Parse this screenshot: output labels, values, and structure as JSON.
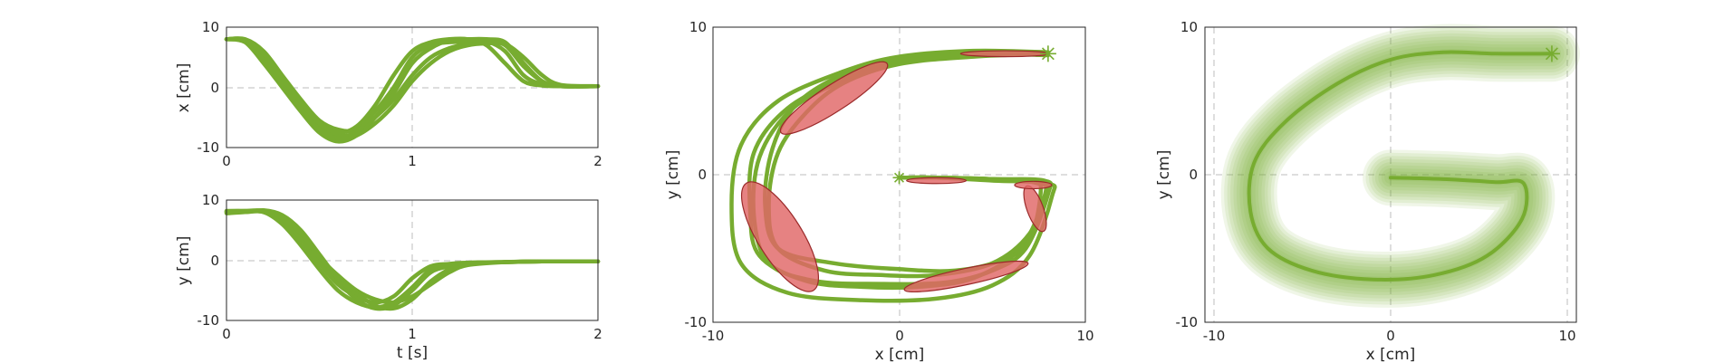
{
  "colors": {
    "trajectory": "#77ac30",
    "ellipse_fill": "#e06666",
    "ellipse_edge": "#9b2a2a",
    "zero_line": "#bdbdbd"
  },
  "chart_data": [
    {
      "type": "line",
      "xlabel": "",
      "ylabel": "x [cm]",
      "xlim": [
        0,
        2
      ],
      "ylim": [
        -10,
        10
      ],
      "xticks": [
        "0",
        "1",
        "2"
      ],
      "yticks": [
        "-10",
        "0",
        "10"
      ],
      "zero_lines": true,
      "series": [
        {
          "x": [
            0,
            0.1,
            0.2,
            0.3,
            0.4,
            0.5,
            0.6,
            0.7,
            0.8,
            0.9,
            1.0,
            1.1,
            1.2,
            1.3,
            1.4,
            1.5,
            1.6,
            1.7,
            1.8,
            2.0
          ],
          "values": [
            8,
            7.5,
            4,
            0,
            -4,
            -7.5,
            -9,
            -8,
            -5,
            -1,
            4,
            6.5,
            7.8,
            8,
            8,
            7.5,
            4,
            1,
            0.2,
            0.2
          ]
        },
        {
          "x": [
            0,
            0.1,
            0.2,
            0.3,
            0.4,
            0.5,
            0.6,
            0.7,
            0.8,
            0.9,
            1.0,
            1.1,
            1.2,
            1.3,
            1.4,
            1.5,
            1.6,
            1.7,
            1.8,
            2.0
          ],
          "values": [
            8,
            7.8,
            5,
            1,
            -3,
            -6.5,
            -8,
            -7.5,
            -5,
            -2,
            2,
            5,
            6.5,
            7.2,
            7.5,
            7,
            3.5,
            1,
            0.2,
            0.2
          ]
        },
        {
          "x": [
            0,
            0.1,
            0.2,
            0.3,
            0.4,
            0.5,
            0.6,
            0.7,
            0.8,
            0.9,
            1.0,
            1.1,
            1.2,
            1.3,
            1.4,
            1.5,
            1.6,
            1.7,
            1.8,
            2.0
          ],
          "values": [
            8,
            8,
            6,
            2,
            -2,
            -5.5,
            -7,
            -7,
            -4,
            0,
            5,
            7,
            7.5,
            7.5,
            7.6,
            6,
            2,
            0.5,
            0.2,
            0.2
          ]
        },
        {
          "x": [
            0,
            0.1,
            0.2,
            0.3,
            0.4,
            0.5,
            0.6,
            0.7,
            0.8,
            0.9,
            1.0,
            1.1,
            1.2,
            1.3,
            1.4,
            1.5,
            1.6,
            1.7,
            1.8,
            2.0
          ],
          "values": [
            8,
            7.6,
            4.5,
            0.5,
            -3.5,
            -7,
            -8.5,
            -8,
            -6,
            -3,
            1,
            4,
            6,
            7,
            7.3,
            7.2,
            5,
            2,
            0.4,
            0.2
          ]
        },
        {
          "x": [
            0,
            0.1,
            0.2,
            0.3,
            0.4,
            0.5,
            0.6,
            0.7,
            0.8,
            0.9,
            1.0,
            1.1,
            1.2,
            1.3,
            1.4,
            1.5,
            1.6,
            1.7,
            1.8,
            2.0
          ],
          "values": [
            8,
            7.9,
            5.5,
            1.5,
            -2.5,
            -6,
            -7.5,
            -6.5,
            -3,
            2,
            6,
            7.5,
            8,
            8,
            7,
            4,
            1,
            0.3,
            0.2,
            0.2
          ]
        }
      ]
    },
    {
      "type": "line",
      "xlabel": "t [s]",
      "ylabel": "y [cm]",
      "xlim": [
        0,
        2
      ],
      "ylim": [
        -10,
        10
      ],
      "xticks": [
        "0",
        "1",
        "2"
      ],
      "yticks": [
        "-10",
        "0",
        "10"
      ],
      "zero_lines": true,
      "series": [
        {
          "x": [
            0,
            0.1,
            0.2,
            0.3,
            0.4,
            0.5,
            0.6,
            0.7,
            0.8,
            0.9,
            1.0,
            1.1,
            1.2,
            1.3,
            1.5,
            1.7,
            2.0
          ],
          "values": [
            8,
            8.2,
            8.2,
            7,
            4,
            0,
            -3.5,
            -6.5,
            -8,
            -7.5,
            -5,
            -2,
            -1,
            -0.5,
            -0.3,
            -0.2,
            -0.2
          ]
        },
        {
          "x": [
            0,
            0.1,
            0.2,
            0.3,
            0.4,
            0.5,
            0.6,
            0.7,
            0.8,
            0.9,
            1.0,
            1.1,
            1.2,
            1.3,
            1.5,
            1.7,
            2.0
          ],
          "values": [
            8.2,
            8.2,
            8,
            6.5,
            3.5,
            -0.5,
            -4,
            -6,
            -7,
            -6,
            -3,
            -1,
            -0.6,
            -0.4,
            -0.3,
            -0.2,
            -0.2
          ]
        },
        {
          "x": [
            0,
            0.1,
            0.2,
            0.3,
            0.4,
            0.5,
            0.6,
            0.7,
            0.8,
            0.9,
            1.0,
            1.1,
            1.2,
            1.3,
            1.5,
            1.7,
            2.0
          ],
          "values": [
            7.8,
            8,
            8.3,
            7.5,
            5,
            1,
            -3,
            -5.5,
            -7.5,
            -8,
            -6.5,
            -3.5,
            -1.5,
            -0.6,
            -0.3,
            -0.2,
            -0.2
          ]
        },
        {
          "x": [
            0,
            0.1,
            0.2,
            0.3,
            0.4,
            0.5,
            0.6,
            0.7,
            0.8,
            0.9,
            1.0,
            1.1,
            1.2,
            1.3,
            1.5,
            1.7,
            2.0
          ],
          "values": [
            8,
            8.1,
            8.1,
            7,
            4.5,
            0.5,
            -2.5,
            -5,
            -6.5,
            -7,
            -6,
            -4,
            -2,
            -0.8,
            -0.3,
            -0.2,
            -0.2
          ]
        },
        {
          "x": [
            0,
            0.1,
            0.2,
            0.3,
            0.4,
            0.5,
            0.6,
            0.7,
            0.8,
            0.9,
            1.0,
            1.1,
            1.2,
            1.3,
            1.5,
            1.7,
            2.0
          ],
          "values": [
            8.1,
            8,
            8,
            6,
            2.5,
            -1.5,
            -5,
            -7,
            -7.8,
            -7,
            -4.5,
            -1.5,
            -0.7,
            -0.4,
            -0.3,
            -0.2,
            -0.2
          ]
        }
      ]
    },
    {
      "type": "line",
      "xlabel": "x [cm]",
      "ylabel": "y [cm]",
      "xlim": [
        -10,
        10
      ],
      "ylim": [
        -10,
        10
      ],
      "xticks": [
        "-10",
        "0",
        "10"
      ],
      "yticks": [
        "-10",
        "0",
        "10"
      ],
      "zero_lines": true,
      "start_marker": {
        "x": 8,
        "y": 8.2
      },
      "end_marker": {
        "x": 0,
        "y": -0.2
      },
      "series": [
        {
          "x": [
            8,
            4,
            0,
            -3,
            -6,
            -7.8,
            -8,
            -7.5,
            -5,
            -2,
            1,
            4,
            6.5,
            7.8,
            7.5,
            5,
            2,
            0
          ],
          "y": [
            8.2,
            8.2,
            7.8,
            6.5,
            4.5,
            1.5,
            -2.5,
            -5.5,
            -7.2,
            -7.6,
            -7.6,
            -7,
            -5,
            -1.5,
            -0.5,
            -0.3,
            -0.2,
            -0.2
          ]
        },
        {
          "x": [
            8,
            4,
            0,
            -3,
            -5,
            -6.5,
            -7,
            -6.5,
            -4,
            -1,
            2,
            5,
            7,
            8,
            7.5,
            5,
            2,
            0
          ],
          "y": [
            8.2,
            8,
            7.5,
            6.2,
            4.2,
            1.5,
            -2,
            -5,
            -6.5,
            -6.8,
            -6.8,
            -6,
            -4,
            -1,
            -0.4,
            -0.3,
            -0.2,
            -0.2
          ]
        },
        {
          "x": [
            8,
            4,
            0,
            -3,
            -6.5,
            -8.5,
            -9,
            -8.5,
            -6,
            -2,
            2,
            5,
            7,
            8.2,
            8,
            5,
            2,
            0
          ],
          "y": [
            8.3,
            8.4,
            8,
            7,
            5,
            2,
            -2,
            -6,
            -8,
            -8.5,
            -8.4,
            -7.5,
            -5.5,
            -1.5,
            -0.6,
            -0.4,
            -0.2,
            -0.2
          ]
        },
        {
          "x": [
            8,
            4,
            0,
            -3,
            -5.5,
            -6.8,
            -7.2,
            -6.5,
            -3.5,
            0,
            3,
            5.5,
            7,
            7.6,
            7.2,
            5,
            2,
            0
          ],
          "y": [
            8.1,
            8.2,
            7.9,
            6.8,
            4.8,
            1.8,
            -2,
            -5,
            -6,
            -6.4,
            -6.5,
            -5.8,
            -4.5,
            -1.2,
            -0.5,
            -0.3,
            -0.2,
            -0.2
          ]
        },
        {
          "x": [
            8,
            4,
            0,
            -3,
            -5.8,
            -7.5,
            -7.8,
            -7,
            -4.5,
            -1,
            2.5,
            5,
            6.8,
            8,
            7.8,
            5,
            2,
            0
          ],
          "y": [
            8.2,
            8.1,
            7.7,
            6.4,
            4.4,
            1.2,
            -2.8,
            -6,
            -7.2,
            -7.4,
            -7.3,
            -6.5,
            -5,
            -1.3,
            -0.4,
            -0.3,
            -0.2,
            -0.2
          ]
        }
      ],
      "ellipses": [
        {
          "cx": -3.5,
          "cy": 5.2,
          "rx": 3.4,
          "ry": 0.9,
          "angle_deg": 33
        },
        {
          "cx": -6.4,
          "cy": -4.2,
          "rx": 3.4,
          "ry": 1.5,
          "angle_deg": -58
        },
        {
          "cx": 3.6,
          "cy": -6.9,
          "rx": 3.4,
          "ry": 0.55,
          "angle_deg": 12
        },
        {
          "cx": 7.3,
          "cy": -2.3,
          "rx": 1.3,
          "ry": 0.55,
          "angle_deg": -70
        },
        {
          "cx": 7.2,
          "cy": -0.7,
          "rx": 1.0,
          "ry": 0.25,
          "angle_deg": 0
        },
        {
          "cx": 2.0,
          "cy": -0.4,
          "rx": 1.6,
          "ry": 0.2,
          "angle_deg": 0
        },
        {
          "cx": 5.7,
          "cy": 8.2,
          "rx": 2.4,
          "ry": 0.2,
          "angle_deg": 0
        }
      ]
    },
    {
      "type": "area",
      "xlabel": "x [cm]",
      "ylabel": "y [cm]",
      "xlim": [
        -10,
        10
      ],
      "ylim": [
        -10,
        10
      ],
      "xticks": [
        "-10",
        "0",
        "10"
      ],
      "yticks": [
        "-10",
        "0",
        "10"
      ],
      "zero_lines": true,
      "start_marker": {
        "x": 9.2,
        "y": 8.2
      },
      "series": [
        {
          "x": [
            9.2,
            6,
            3,
            0,
            -3,
            -6,
            -7.8,
            -8,
            -7,
            -4.5,
            -1,
            2.5,
            5.5,
            7.5,
            7.6,
            6,
            3,
            0
          ],
          "y": [
            8.2,
            8.2,
            8.3,
            7.8,
            6.2,
            3.6,
            0.8,
            -2.5,
            -5,
            -6.5,
            -7.1,
            -6.8,
            -5.5,
            -3,
            -0.6,
            -0.5,
            -0.3,
            -0.2
          ],
          "band_width": 1.6
        }
      ]
    }
  ]
}
